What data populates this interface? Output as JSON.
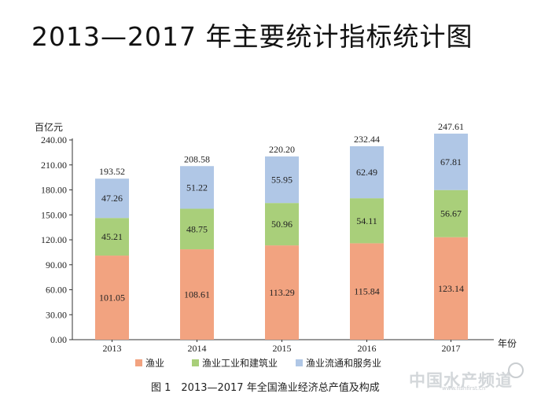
{
  "page": {
    "title": "2013—2017 年主要统计指标统计图",
    "caption": "图 1　2013—2017 年全国渔业经济总产值及构成",
    "watermark": "中国水产频道",
    "watermark_sub": "www.fishfirst.cn"
  },
  "chart_data": {
    "type": "bar",
    "stacked": true,
    "ylabel": "百亿元",
    "xlabel": "年份",
    "ylim": [
      0,
      240
    ],
    "yticks": [
      "0.00",
      "30.00",
      "60.00",
      "90.00",
      "120.00",
      "150.00",
      "180.00",
      "210.00",
      "240.00"
    ],
    "categories": [
      "2013",
      "2014",
      "2015",
      "2016",
      "2017"
    ],
    "series": [
      {
        "name": "渔业",
        "color": "#f2a380",
        "values": [
          101.05,
          108.61,
          113.29,
          115.84,
          123.14
        ],
        "labels": [
          "101.05",
          "108.61",
          "113.29",
          "115.84",
          "123.14"
        ]
      },
      {
        "name": "渔业工业和建筑业",
        "color": "#a9cf7a",
        "values": [
          45.21,
          48.75,
          50.96,
          54.11,
          56.67
        ],
        "labels": [
          "45.21",
          "48.75",
          "50.96",
          "54.11",
          "56.67"
        ]
      },
      {
        "name": "渔业流通和服务业",
        "color": "#b0c7e6",
        "values": [
          47.26,
          51.22,
          55.95,
          62.49,
          67.81
        ],
        "labels": [
          "47.26",
          "51.22",
          "55.95",
          "62.49",
          "67.81"
        ]
      }
    ],
    "totals": [
      "193.52",
      "208.58",
      "220.20",
      "232.44",
      "247.61"
    ],
    "legend_position": "bottom",
    "grid": false
  }
}
